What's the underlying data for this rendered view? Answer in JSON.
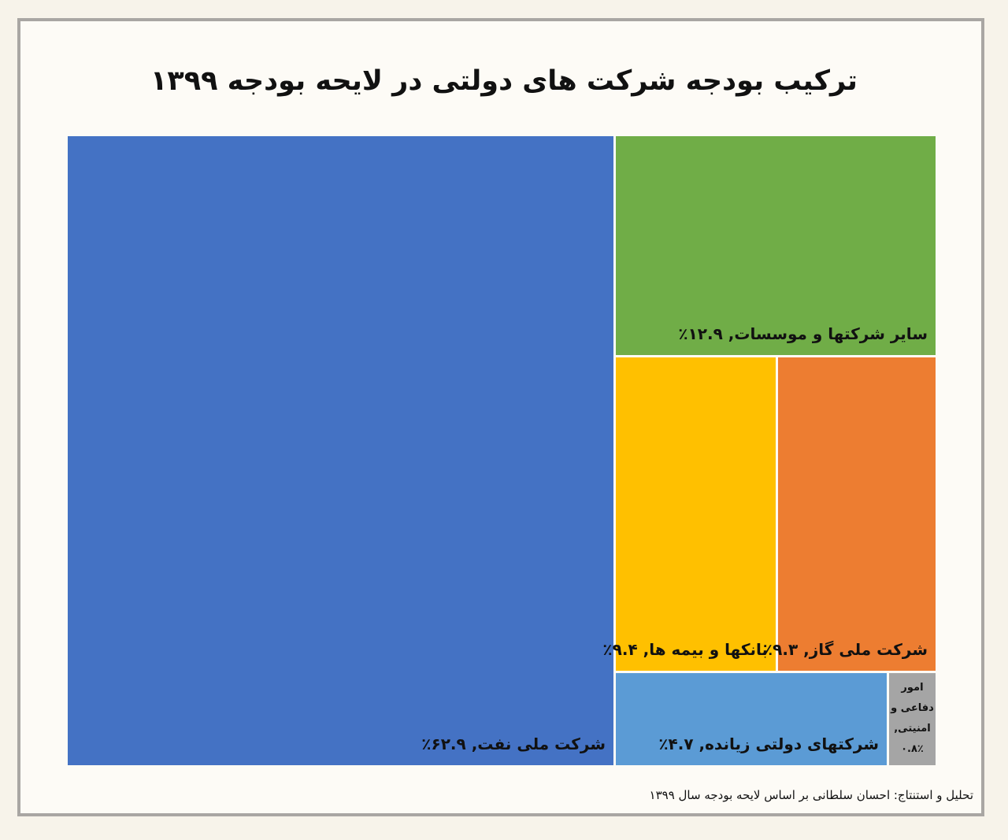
{
  "title": "ترکیب بودجه شرکت های دولتی در لایحه بودجه ۱۳۹۹",
  "source": "تحلیل و استنتاج: احسان سلطانی بر اساس لایحه بودجه سال ۱۳۹۹",
  "chart_data": {
    "type": "treemap",
    "title": "ترکیب بودجه شرکت های دولتی در لایحه بودجه ۱۳۹۹",
    "unit": "%",
    "items": [
      {
        "name": "شرکت ملی نفت",
        "value": 62.9,
        "label": "شرکت ملی نفت, ۶۲.۹٪",
        "color": "#4472c4"
      },
      {
        "name": "سایر شرکتها و موسسات",
        "value": 12.9,
        "label": "سایر شرکتها و موسسات, ۱۲.۹٪",
        "color": "#70ad47"
      },
      {
        "name": "بانکها و بیمه ها",
        "value": 9.4,
        "label": "بانکها و بیمه ها, ۹.۴٪",
        "color": "#ffc000"
      },
      {
        "name": "شرکت ملی گاز",
        "value": 9.3,
        "label": "شرکت ملی گاز, ۹.۳٪",
        "color": "#ed7d31"
      },
      {
        "name": "شرکتهای دولتی زیانده",
        "value": 4.7,
        "label": "شرکتهای دولتی زیانده, ۴.۷٪",
        "color": "#5b9bd5"
      },
      {
        "name": "امور دفاعی و امنیتی",
        "value": 0.8,
        "label": "امور دفاعی و امنیتی, ۰.۸٪",
        "label_lines": [
          "امور",
          "دفاعی و",
          "امنیتی,",
          "۰.۸٪"
        ],
        "color": "#a5a5a5"
      }
    ]
  }
}
